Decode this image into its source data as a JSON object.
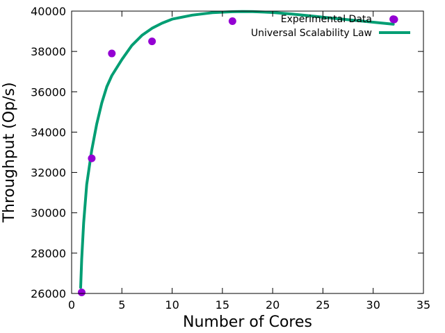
{
  "chart_data": {
    "type": "scatter",
    "xlabel": "Number of Cores",
    "ylabel": "Throughput (Op/s)",
    "xlim": [
      0,
      35
    ],
    "ylim": [
      26000,
      40000
    ],
    "xticks": [
      0,
      5,
      10,
      15,
      20,
      25,
      30,
      35
    ],
    "yticks": [
      26000,
      28000,
      30000,
      32000,
      34000,
      36000,
      38000,
      40000
    ],
    "grid": false,
    "legend_position": "top-right",
    "series": [
      {
        "name": "Experimental Data",
        "type": "scatter",
        "color": "#9400d3",
        "x": [
          1,
          2,
          4,
          8,
          16,
          32
        ],
        "y": [
          26050,
          32700,
          37900,
          38500,
          39500,
          39600
        ]
      },
      {
        "name": "Universal Scalability Law",
        "type": "line",
        "color": "#009e73",
        "x": [
          0.9,
          1,
          1.2,
          1.5,
          2,
          2.5,
          3,
          3.5,
          4,
          5,
          6,
          7,
          8,
          9,
          10,
          12,
          14,
          16,
          17,
          18,
          20,
          22,
          24,
          26,
          28,
          30,
          32
        ],
        "y": [
          26300,
          27700,
          29500,
          31400,
          33100,
          34400,
          35450,
          36250,
          36800,
          37600,
          38300,
          38800,
          39150,
          39400,
          39600,
          39800,
          39920,
          39970,
          39980,
          39975,
          39930,
          39850,
          39750,
          39650,
          39550,
          39450,
          39350
        ]
      }
    ]
  }
}
